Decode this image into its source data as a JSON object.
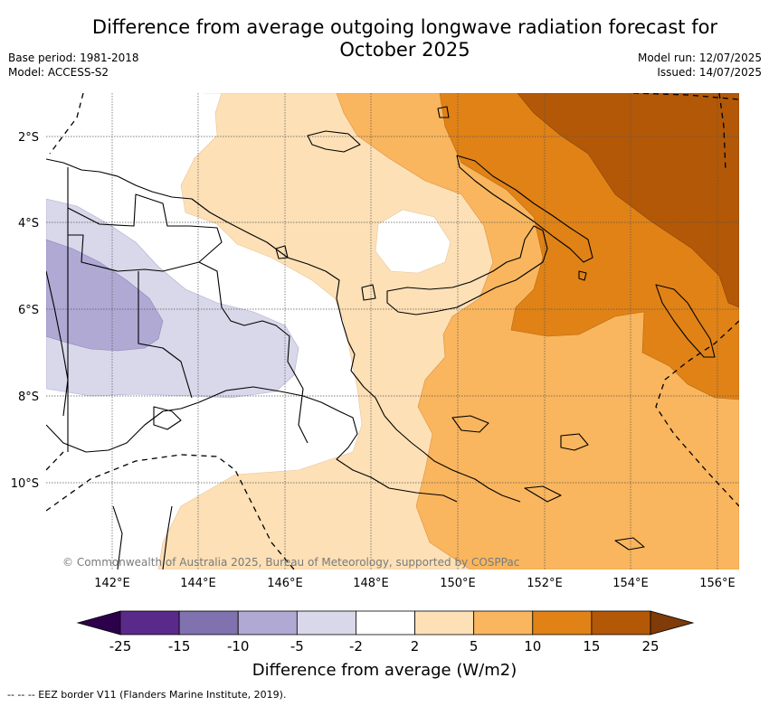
{
  "title": "Difference from average outgoing longwave radiation forecast for October 2025",
  "title_lines": [
    "Difference from average outgoing longwave radiation forecast for",
    "October 2025"
  ],
  "base_period": "Base period: 1981-2018",
  "model": "Model: ACCESS-S2",
  "model_run": "Model run: 12/07/2025",
  "issued": "Issued: 14/07/2025",
  "copyright": "© Commonwealth of Australia 2025, Bureau of Meteorology, supported by COSPPac",
  "lat_labels": [
    "2°S",
    "4°S",
    "6°S",
    "8°S",
    "10°S"
  ],
  "lon_labels": [
    "142°E",
    "144°E",
    "146°E",
    "148°E",
    "150°E",
    "152°E",
    "154°E",
    "156°E"
  ],
  "colorbar": {
    "ticks": [
      "-25",
      "-15",
      "-10",
      "-5",
      "-2",
      "2",
      "5",
      "10",
      "15",
      "25"
    ],
    "colors": [
      "#5a2a8a",
      "#7f72ae",
      "#b0a9d4",
      "#d8d8ea",
      "#ffffff",
      "#fde0b6",
      "#f9b65e",
      "#e08216",
      "#b35807"
    ],
    "under_color": "#2d004b",
    "over_color": "#7f3b08",
    "label": "Difference from average (W/m2)"
  },
  "footer": "--  --  -- EEZ border V11 (Flanders Marine Institute, 2019)."
}
